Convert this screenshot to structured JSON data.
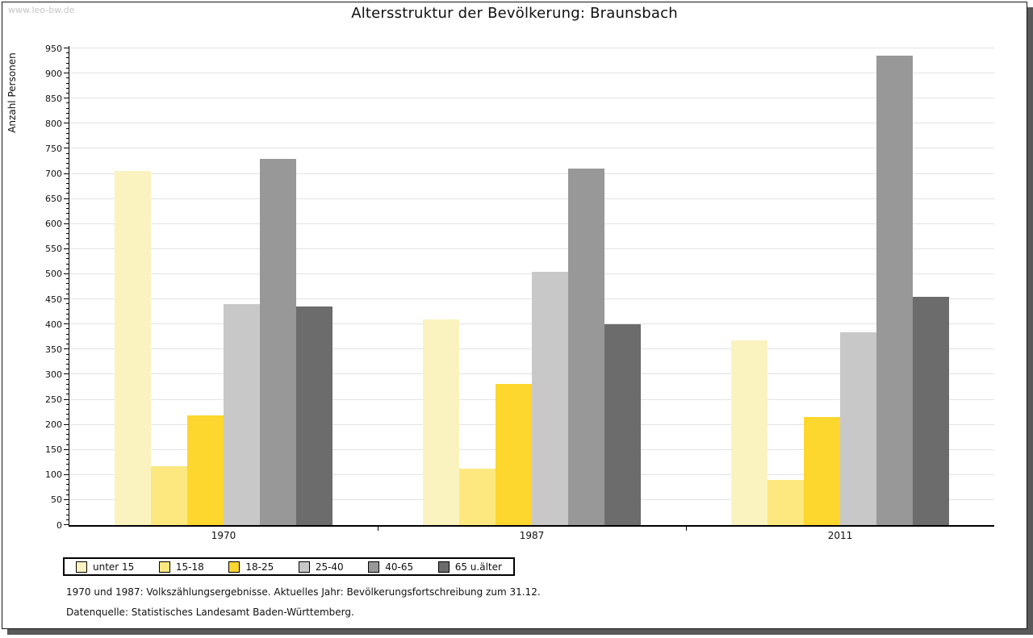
{
  "watermark": "www.leo-bw.de",
  "title": "Altersstruktur der Bevölkerung: Braunsbach",
  "chart_data": {
    "type": "bar",
    "title": "Altersstruktur der Bevölkerung: Braunsbach",
    "xlabel": "",
    "ylabel": "Anzahl Personen",
    "ylim": [
      0,
      950
    ],
    "ytick_step": 50,
    "yminor_step": 10,
    "yticks": [
      0,
      50,
      100,
      150,
      200,
      250,
      300,
      350,
      400,
      450,
      500,
      550,
      600,
      650,
      700,
      750,
      800,
      850,
      900,
      950
    ],
    "grid": true,
    "legend_position": "bottom",
    "categories": [
      "1970",
      "1987",
      "2011"
    ],
    "series": [
      {
        "name": "unter 15",
        "color": "#FBF3BF",
        "values": [
          705,
          410,
          368
        ]
      },
      {
        "name": "15-18",
        "color": "#FCE87F",
        "values": [
          118,
          112,
          90
        ]
      },
      {
        "name": "18-25",
        "color": "#FDD62E",
        "values": [
          218,
          282,
          215
        ]
      },
      {
        "name": "25-40",
        "color": "#C8C8C8",
        "values": [
          440,
          505,
          385
        ]
      },
      {
        "name": "40-65",
        "color": "#989898",
        "values": [
          730,
          710,
          935
        ]
      },
      {
        "name": "65 u.älter",
        "color": "#6C6C6C",
        "values": [
          435,
          400,
          455
        ]
      }
    ],
    "colors": {
      "grid": "#e3e3e3",
      "axis": "#000000",
      "shadow": "#595959",
      "watermark": "#c6c6c6"
    }
  },
  "footnotes": [
    "1970 und 1987: Volkszählungsergebnisse. Aktuelles Jahr: Bevölkerungsfortschreibung zum 31.12.",
    "Datenquelle: Statistisches Landesamt Baden-Württemberg."
  ]
}
